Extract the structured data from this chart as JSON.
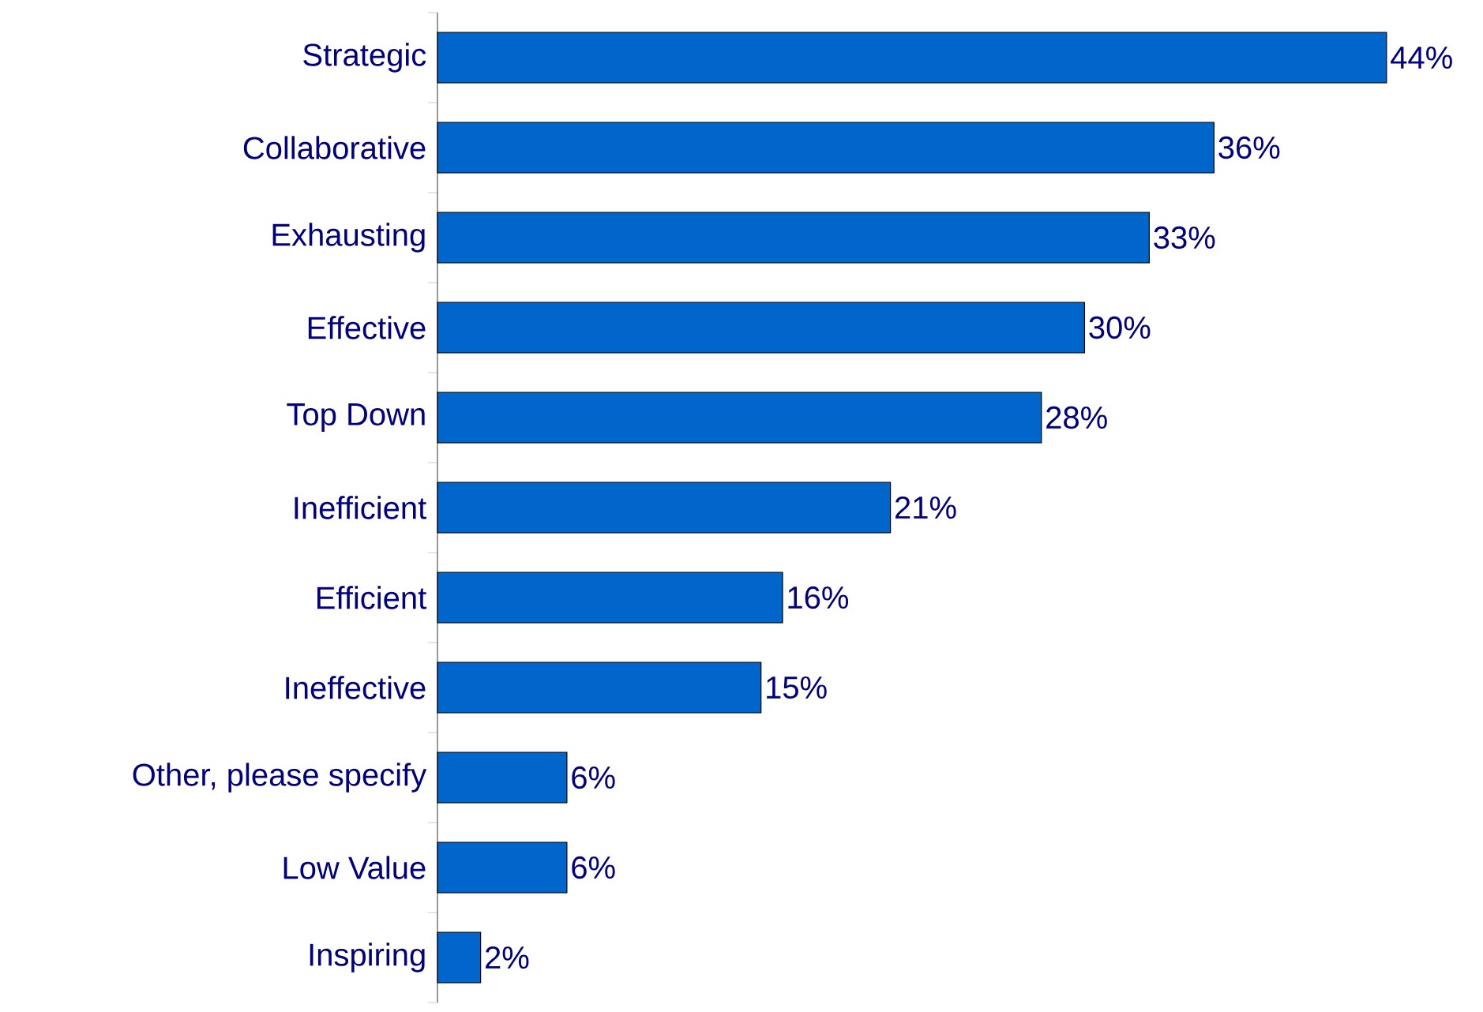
{
  "chart_data": {
    "type": "bar",
    "orientation": "horizontal",
    "categories": [
      "Strategic",
      "Collaborative",
      "Exhausting",
      "Effective",
      "Top Down",
      "Inefficient",
      "Efficient",
      "Ineffective",
      "Other, please specify",
      "Low Value",
      "Inspiring"
    ],
    "values": [
      44,
      36,
      33,
      30,
      28,
      21,
      16,
      15,
      6,
      6,
      2
    ],
    "value_labels": [
      "44%",
      "36%",
      "33%",
      "30%",
      "28%",
      "21%",
      "16%",
      "15%",
      "6%",
      "6%",
      "2%"
    ],
    "color": "#0066cc"
  }
}
